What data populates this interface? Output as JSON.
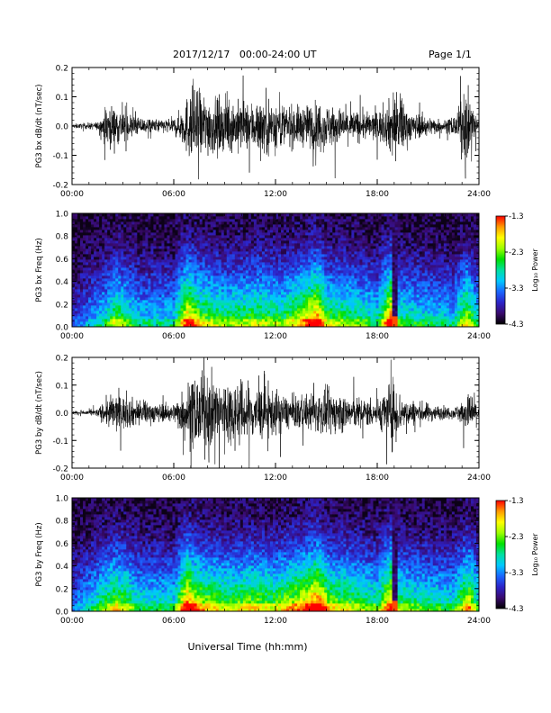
{
  "header": {
    "date_range": "2017/12/17   00:00-24:00 UT",
    "page": "Page 1/1"
  },
  "x_axis": {
    "label": "Universal Time (hh:mm)",
    "ticks": [
      "00:00",
      "06:00",
      "12:00",
      "18:00",
      "24:00"
    ],
    "range_hours": [
      0,
      24
    ]
  },
  "colorbar": {
    "label": "Log₁₀ Power",
    "ticks": [
      "-1.3",
      "-2.3",
      "-3.3",
      "-4.3"
    ],
    "range": [
      -4.3,
      -1.3
    ],
    "colors": [
      "#000000",
      "#3a0a6e",
      "#2c23c8",
      "#1a66ff",
      "#00c8ff",
      "#00e0a0",
      "#00e000",
      "#9cff00",
      "#ffff00",
      "#ff9a00",
      "#ff0000"
    ]
  },
  "chart_data": [
    {
      "type": "line",
      "panel": "bx-dbdt",
      "ylabel": "PG3 bx dB/dt (nT/sec)",
      "ylim": [
        -0.2,
        0.2
      ],
      "yticks": [
        "0.2",
        "0.1",
        "0.0",
        "-0.1",
        "-0.2"
      ],
      "series": [
        {
          "name": "",
          "color": "#000000"
        }
      ],
      "envelope": {
        "x_hours": [
          0,
          1.5,
          1.8,
          2.1,
          2.5,
          3.0,
          3.5,
          4.2,
          5.0,
          6.0,
          6.5,
          7.0,
          7.5,
          8.5,
          9.5,
          10.5,
          11.5,
          12.5,
          13.5,
          14.5,
          15.5,
          16.5,
          17.5,
          18.5,
          19.0,
          20.0,
          21.0,
          22.0,
          22.7,
          23.2,
          24.0
        ],
        "amplitude": [
          0.01,
          0.02,
          0.06,
          0.12,
          0.1,
          0.09,
          0.06,
          0.04,
          0.035,
          0.04,
          0.09,
          0.2,
          0.18,
          0.14,
          0.13,
          0.12,
          0.16,
          0.11,
          0.1,
          0.13,
          0.1,
          0.08,
          0.07,
          0.09,
          0.2,
          0.07,
          0.05,
          0.03,
          0.06,
          0.2,
          0.04
        ]
      }
    },
    {
      "type": "heatmap",
      "panel": "bx-freq",
      "ylabel": "PG3 bx Freq (Hz)",
      "ylim": [
        0,
        1.0
      ],
      "yticks": [
        "1.0",
        "0.8",
        "0.6",
        "0.4",
        "0.2",
        "0.0"
      ],
      "zlabel": "Log₁₀ Power",
      "zlim": [
        -4.3,
        -1.3
      ],
      "activity": {
        "x_hours": [
          0,
          2.0,
          2.5,
          3.0,
          4.0,
          6.0,
          6.8,
          7.5,
          9.0,
          11.0,
          12.5,
          13.5,
          14.5,
          15.0,
          16.5,
          18.0,
          18.8,
          19.2,
          20.5,
          22.5,
          23.3,
          24.0
        ],
        "level": [
          0.2,
          0.45,
          0.6,
          0.55,
          0.4,
          0.4,
          0.85,
          0.65,
          0.55,
          0.6,
          0.55,
          0.7,
          0.9,
          0.6,
          0.55,
          0.45,
          0.9,
          0.5,
          0.45,
          0.4,
          0.7,
          0.4
        ]
      },
      "bright_columns_hours": [
        13.6,
        18.9,
        19.1
      ]
    },
    {
      "type": "line",
      "panel": "by-dbdt",
      "ylabel": "PG3 by dB/dt (nT/sec)",
      "ylim": [
        -0.2,
        0.2
      ],
      "yticks": [
        "0.2",
        "0.1",
        "0.0",
        "-0.1",
        "-0.2"
      ],
      "series": [
        {
          "name": "",
          "color": "#000000"
        }
      ],
      "envelope": {
        "x_hours": [
          0,
          1.5,
          2.0,
          2.5,
          3.0,
          3.5,
          4.5,
          5.5,
          6.0,
          6.5,
          7.0,
          8.0,
          9.0,
          10.0,
          11.0,
          12.0,
          13.0,
          14.0,
          15.0,
          16.0,
          17.0,
          18.0,
          19.0,
          19.5,
          20.5,
          21.5,
          22.5,
          23.0,
          23.5,
          24.0
        ],
        "amplitude": [
          0.01,
          0.02,
          0.07,
          0.11,
          0.09,
          0.08,
          0.06,
          0.045,
          0.05,
          0.12,
          0.19,
          0.2,
          0.19,
          0.17,
          0.15,
          0.12,
          0.08,
          0.1,
          0.12,
          0.1,
          0.08,
          0.07,
          0.19,
          0.08,
          0.06,
          0.04,
          0.03,
          0.06,
          0.12,
          0.04
        ]
      }
    },
    {
      "type": "heatmap",
      "panel": "by-freq",
      "ylabel": "PG3 by Freq (Hz)",
      "ylim": [
        0,
        1.0
      ],
      "yticks": [
        "1.0",
        "0.8",
        "0.6",
        "0.4",
        "0.2",
        "0.0"
      ],
      "zlabel": "Log₁₀ Power",
      "zlim": [
        -4.3,
        -1.3
      ],
      "activity": {
        "x_hours": [
          0,
          2.0,
          2.5,
          3.2,
          4.0,
          6.0,
          6.8,
          7.5,
          9.0,
          10.5,
          12.0,
          13.5,
          14.5,
          15.2,
          16.5,
          18.0,
          18.9,
          19.3,
          20.5,
          22.5,
          23.4,
          24.0
        ],
        "level": [
          0.25,
          0.55,
          0.65,
          0.6,
          0.45,
          0.45,
          0.9,
          0.7,
          0.6,
          0.65,
          0.6,
          0.75,
          0.95,
          0.65,
          0.6,
          0.5,
          0.9,
          0.55,
          0.5,
          0.45,
          0.75,
          0.45
        ]
      },
      "bright_columns_hours": [
        13.6,
        18.9,
        19.1
      ]
    }
  ]
}
